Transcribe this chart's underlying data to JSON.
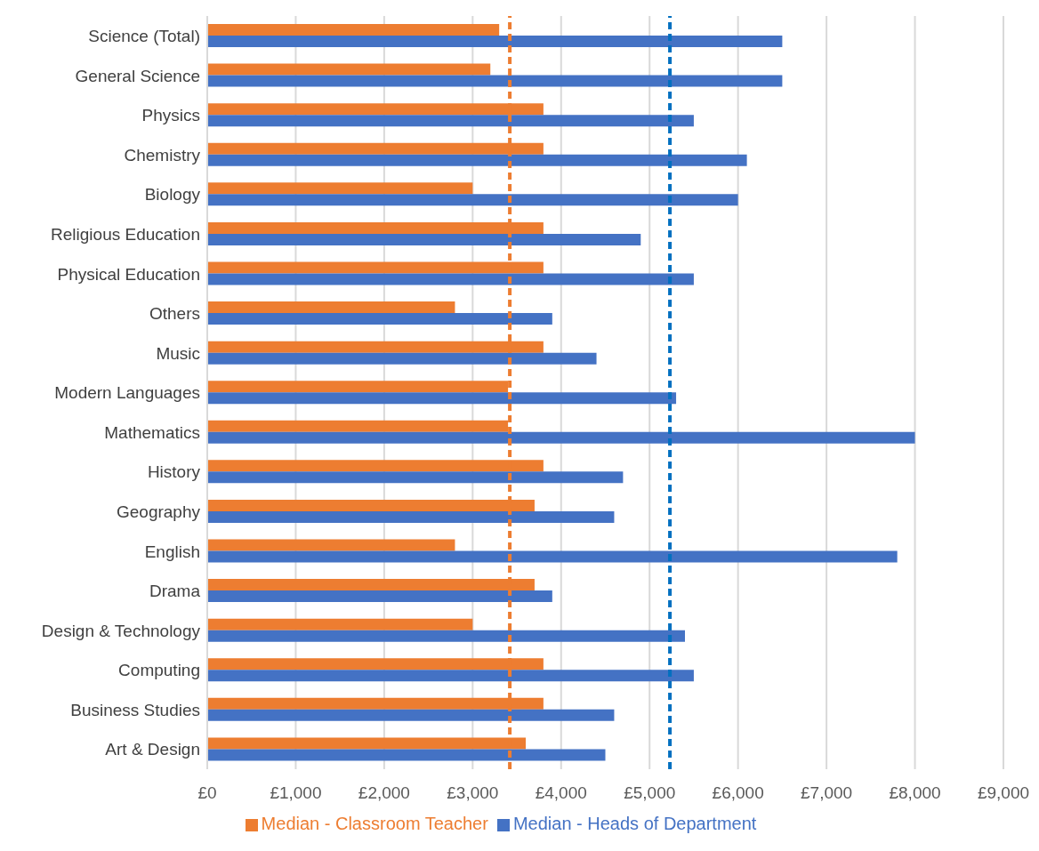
{
  "chart_data": {
    "type": "bar",
    "orientation": "horizontal",
    "categories": [
      "Science (Total)",
      "General Science",
      "Physics",
      "Chemistry",
      "Biology",
      "Religious Education",
      "Physical Education",
      "Others",
      "Music",
      "Modern Languages",
      "Mathematics",
      "History",
      "Geography",
      "English",
      "Drama",
      "Design & Technology",
      "Computing",
      "Business Studies",
      "Art & Design"
    ],
    "series": [
      {
        "name": "Median - Classroom Teacher",
        "color": "#ed7d31",
        "values": [
          3300,
          3200,
          3800,
          3800,
          3000,
          3800,
          3800,
          2800,
          3800,
          3400,
          3400,
          3800,
          3700,
          2800,
          3700,
          3000,
          3800,
          3800,
          3600
        ]
      },
      {
        "name": "Median - Heads of Department",
        "color": "#4472c4",
        "values": [
          6500,
          6500,
          5500,
          6100,
          6000,
          4900,
          5500,
          3900,
          4400,
          5300,
          8000,
          4700,
          4600,
          7800,
          3900,
          5400,
          5500,
          4600,
          4500
        ]
      }
    ],
    "xlim": [
      0,
      9000
    ],
    "xticks": [
      {
        "value": 0,
        "label": "£0"
      },
      {
        "value": 1000,
        "label": "£1,000"
      },
      {
        "value": 2000,
        "label": "£2,000"
      },
      {
        "value": 3000,
        "label": "£3,000"
      },
      {
        "value": 4000,
        "label": "£4,000"
      },
      {
        "value": 5000,
        "label": "£5,000"
      },
      {
        "value": 6000,
        "label": "£6,000"
      },
      {
        "value": 7000,
        "label": "£7,000"
      },
      {
        "value": 8000,
        "label": "£8,000"
      },
      {
        "value": 9000,
        "label": "£9,000"
      }
    ],
    "ref_lines": [
      {
        "axis": "x",
        "value": 3420,
        "color": "#ed7d31",
        "line_style": "dashed"
      },
      {
        "axis": "x",
        "value": 5230,
        "color": "#0070c0",
        "line_style": "dashed"
      }
    ],
    "grid": "x",
    "legend": "bottom"
  }
}
